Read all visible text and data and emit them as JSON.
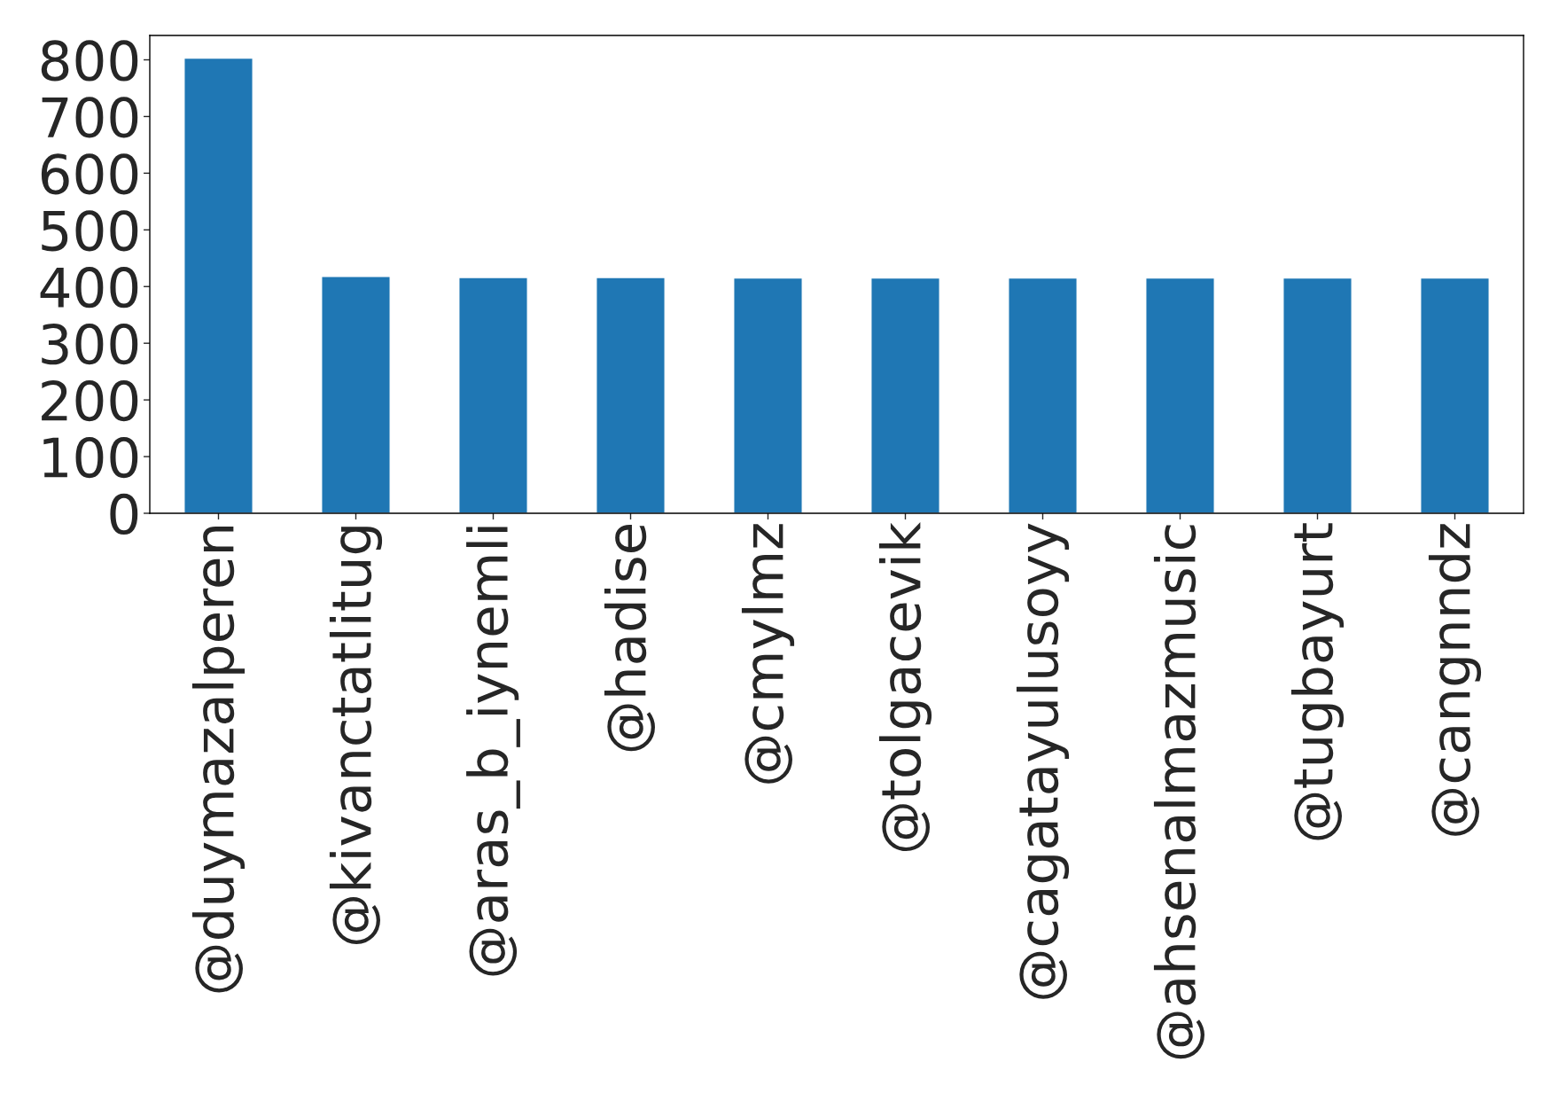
{
  "chart_data": {
    "type": "bar",
    "categories": [
      "@duymazalperen",
      "@kivanctatlitug",
      "@aras_b_iynemli",
      "@hadise",
      "@cmylmz",
      "@tolgacevik",
      "@cagatayulusoyy",
      "@ahsenalmazmusic",
      "@tugbayurt",
      "@cangnndz"
    ],
    "values": [
      803,
      418,
      416,
      416,
      415,
      415,
      415,
      415,
      415,
      415
    ],
    "color": "#1f77b4",
    "ylim": [
      0,
      843
    ],
    "yticks": [
      0,
      100,
      200,
      300,
      400,
      500,
      600,
      700,
      800
    ],
    "grid": false,
    "legend": false
  }
}
